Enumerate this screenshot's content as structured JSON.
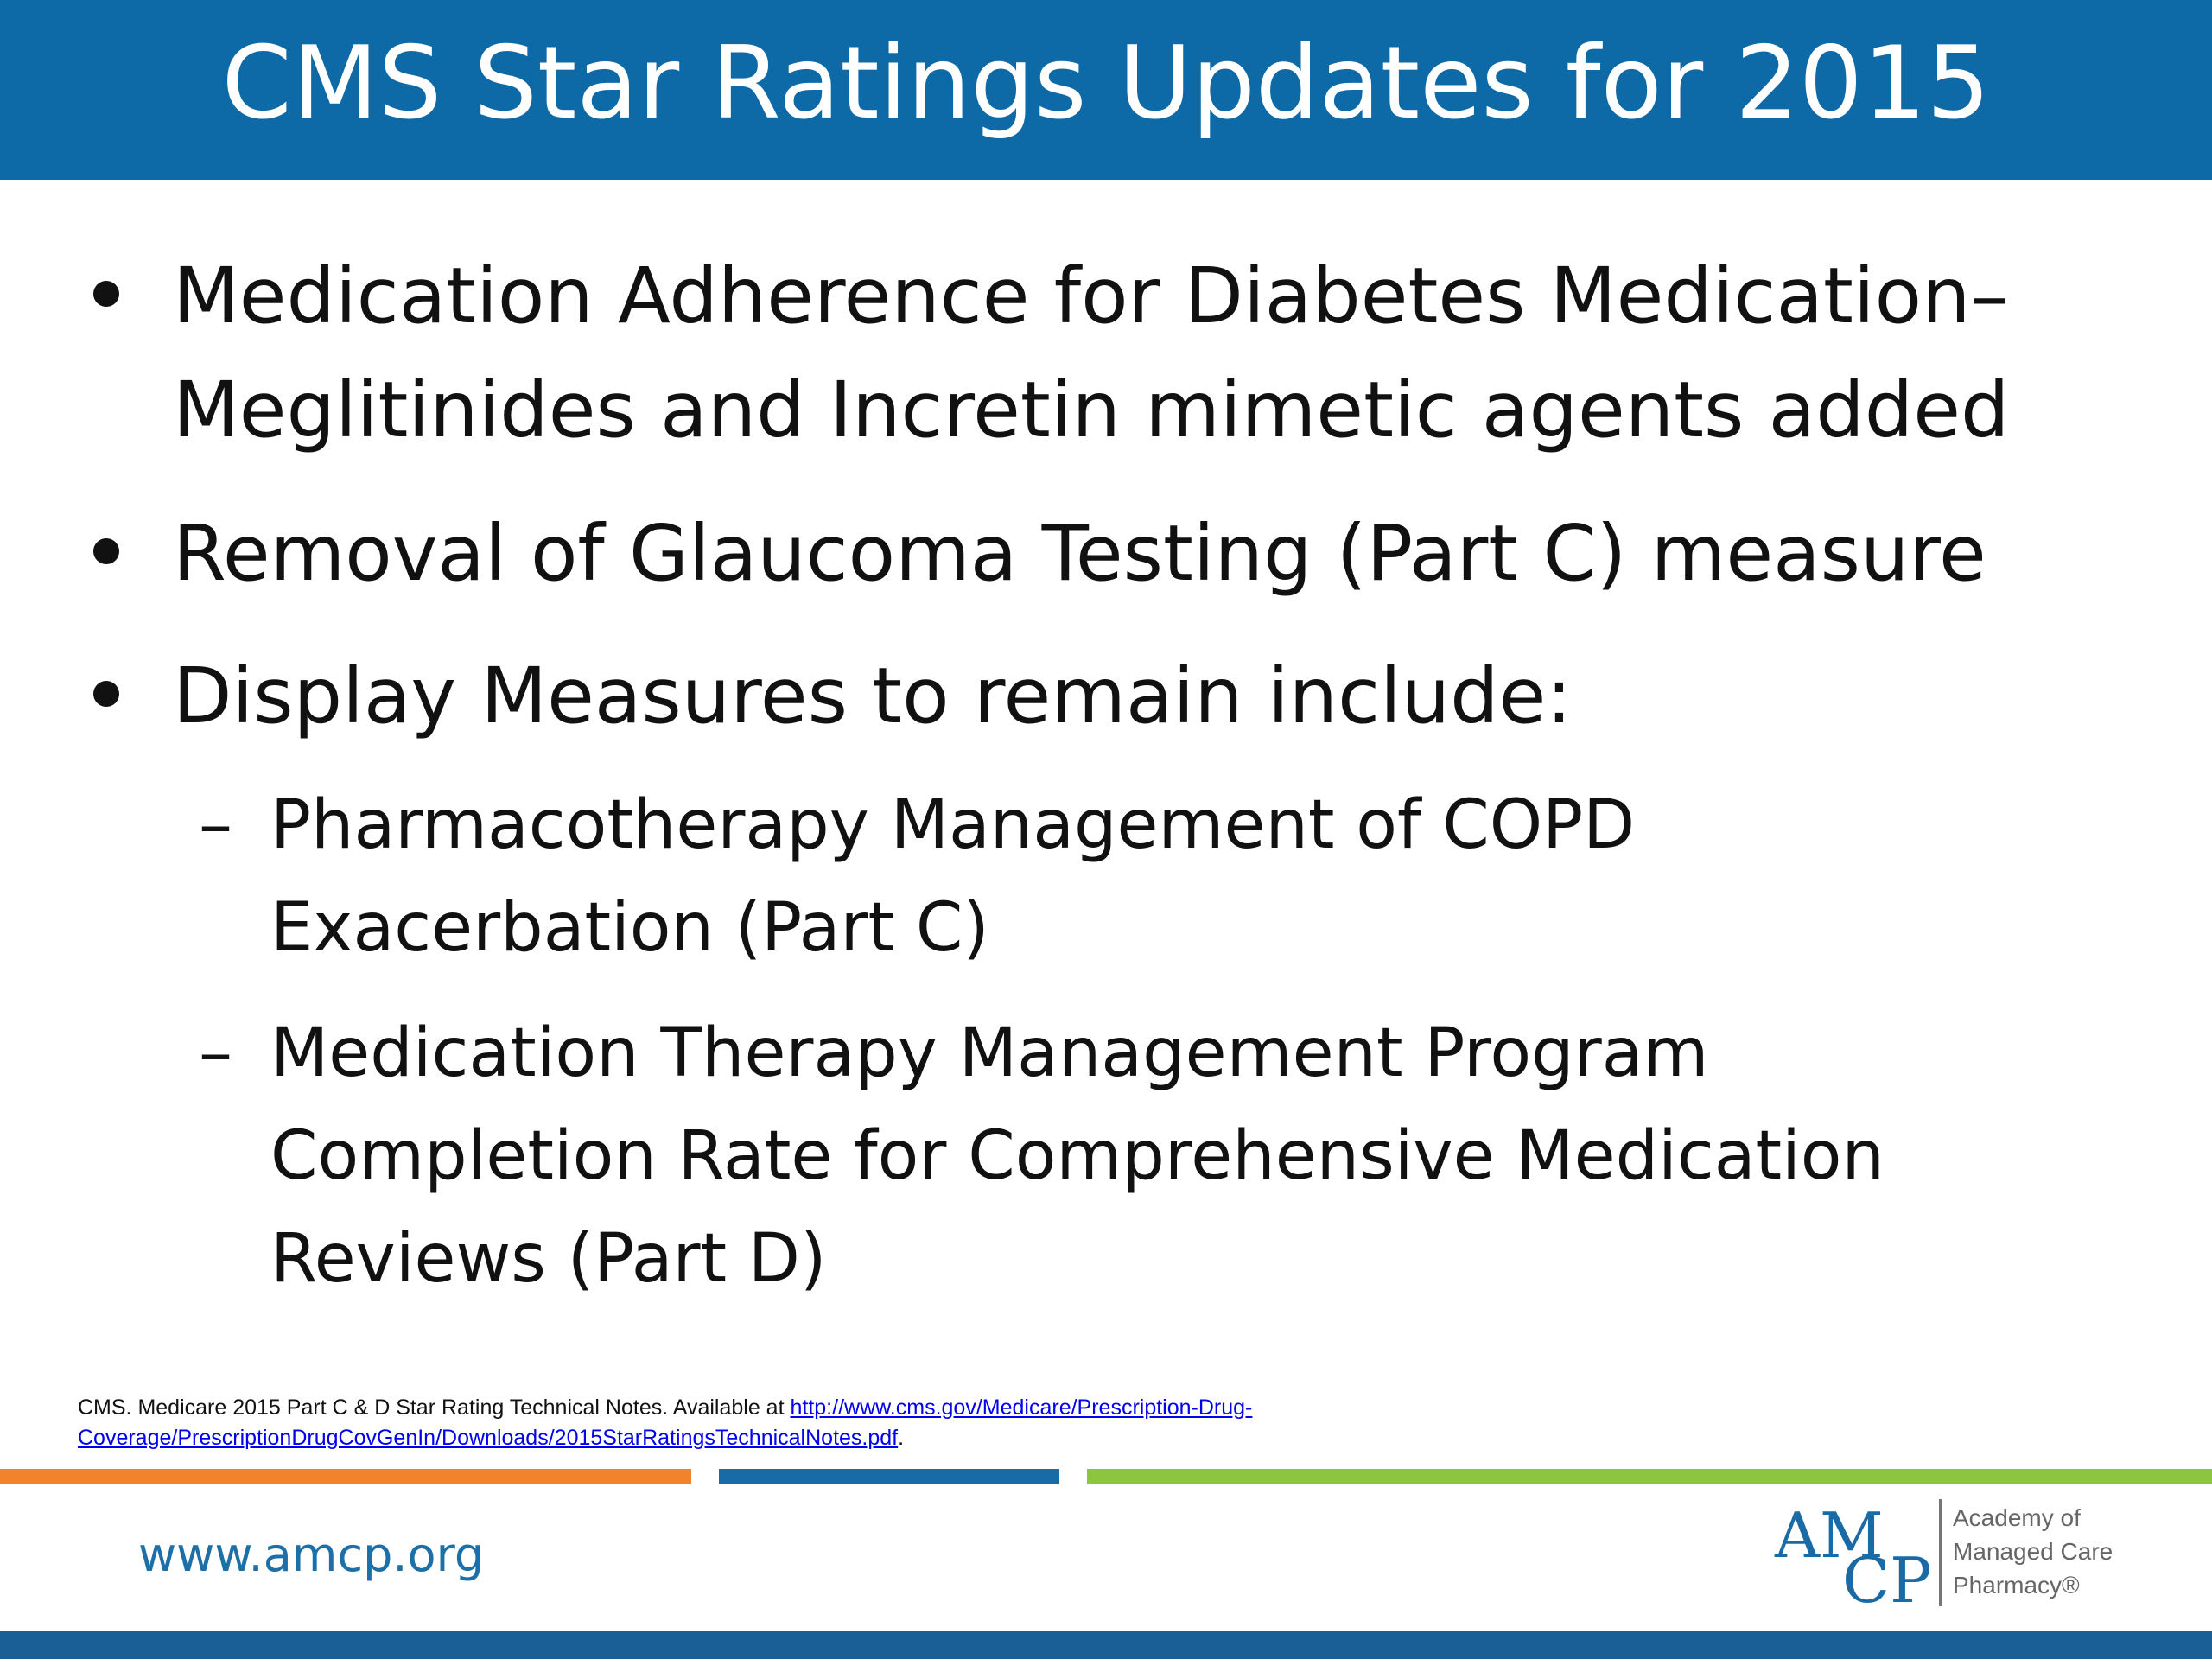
{
  "slide": {
    "title": "CMS Star Ratings Updates for 2015",
    "bullets": [
      {
        "lines": [
          "Medication Adherence for Diabetes Medication–",
          "Meglitinides and Incretin mimetic agents added"
        ]
      },
      {
        "lines": [
          "Removal of Glaucoma Testing (Part C) measure"
        ]
      },
      {
        "lines": [
          "Display Measures to remain include:"
        ],
        "sub_bullets": [
          {
            "dash": "–",
            "lines": [
              "Pharmacotherapy Management of COPD",
              "Exacerbation (Part C)"
            ]
          },
          {
            "dash": "–",
            "lines": [
              "Medication Therapy Management Program",
              "Completion Rate for Comprehensive Medication",
              "Reviews (Part D)"
            ]
          }
        ]
      }
    ]
  },
  "footnote": {
    "prefix": "CMS.  Medicare 2015 Part C & D Star Rating Technical Notes.  Available at ",
    "link_line1": "http://www.cms.gov/Medicare/Prescription-Drug-",
    "link_line2": "Coverage/PrescriptionDrugCovGenIn/Downloads/2015StarRatingsTechnicalNotes.pdf",
    "suffix": "."
  },
  "footer": {
    "website": "www.amcp.org",
    "logo": {
      "mark_top": "AM",
      "mark_bottom": "CP",
      "name_line1": "Academy of",
      "name_line2": "Managed Care",
      "name_line3": "Pharmacy®"
    }
  },
  "colors": {
    "title_bar": "#0d6aa6",
    "title_text": "#ffffff",
    "stripe_orange": "#f2832d",
    "stripe_blue": "#1a6aa5",
    "stripe_green": "#8cc641",
    "website_text": "#1d6fa7",
    "bottom_bar": "#1a5f95"
  }
}
